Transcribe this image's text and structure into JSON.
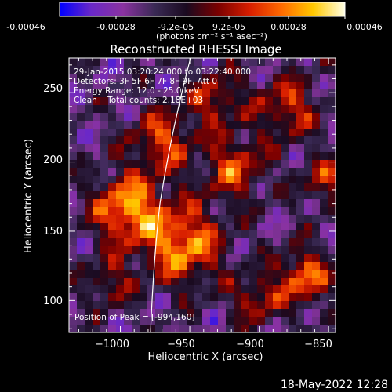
{
  "colorbar": {
    "ticks": [
      "-0.00046",
      "-0.00028",
      "-9.2e-05",
      "9.2e-05",
      "0.00028",
      "0.00046"
    ],
    "unit_label": "(photons cm⁻² s⁻¹ asec⁻²)"
  },
  "plot": {
    "title": "Reconstructed RHESSI Image",
    "xlabel": "Heliocentric X (arcsec)",
    "ylabel": "Heliocentric Y (arcsec)",
    "x_ticks": [
      "−1000",
      "−950",
      "−900",
      "−850"
    ],
    "y_ticks": [
      "100",
      "150",
      "200",
      "250"
    ],
    "info_lines": [
      "29-Jan-2015 03:20:24.000 to 03:22:40.000",
      "Detectors: 3F 5F 6F 7F 8F 9F, Att 0",
      "Energy Range: 12.0 - 25.0 keV",
      "Clean    Total counts: 2.18E+03"
    ],
    "peak_label": "Position of Peak = [-994,160]"
  },
  "footer": {
    "timestamp": "18-May-2022 12:28"
  },
  "chart_data": {
    "type": "heatmap",
    "title": "Reconstructed RHESSI Image",
    "xlabel": "Heliocentric X (arcsec)",
    "ylabel": "Heliocentric Y (arcsec)",
    "xlim": [
      -1037,
      -845
    ],
    "ylim": [
      77,
      275
    ],
    "color_range": [
      -0.00046,
      0.00046
    ],
    "peak_position": [
      -994,
      160
    ],
    "colors": {
      "colormap": [
        "#0000ff",
        "#6a28c8",
        "#8a32a0",
        "#3a2a55",
        "#1a0a20",
        "#7a0000",
        "#d81e00",
        "#ff6a00",
        "#ffc800",
        "#ffffe6"
      ],
      "limb_line": "#ffffff"
    }
  }
}
